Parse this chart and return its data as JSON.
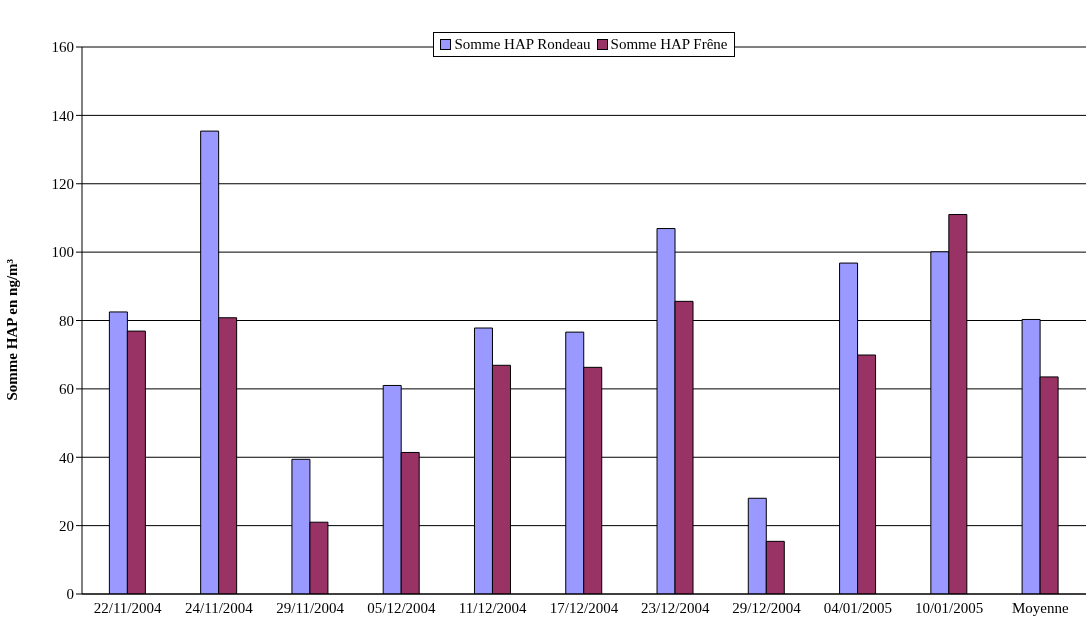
{
  "chart_data": {
    "type": "bar",
    "ylabel": "Somme HAP en ng/m³",
    "categories": [
      "22/11/2004",
      "24/11/2004",
      "29/11/2004",
      "05/12/2004",
      "11/12/2004",
      "17/12/2004",
      "23/12/2004",
      "29/12/2004",
      "04/01/2005",
      "10/01/2005",
      "Moyenne"
    ],
    "series": [
      {
        "name": "Somme HAP Rondeau",
        "color": "#9999ff",
        "values": [
          82.5,
          135.4,
          39.4,
          61.0,
          77.8,
          76.6,
          106.9,
          28.0,
          96.8,
          100.1,
          80.3
        ]
      },
      {
        "name": "Somme HAP Frêne",
        "color": "#993366",
        "values": [
          76.9,
          80.8,
          21.0,
          41.4,
          66.9,
          66.3,
          85.6,
          15.4,
          69.9,
          111.0,
          63.5
        ]
      }
    ],
    "ylim": [
      0,
      160
    ],
    "yticks": [
      0,
      20,
      40,
      60,
      80,
      100,
      120,
      140,
      160
    ],
    "grid": "y",
    "legend": "top"
  }
}
